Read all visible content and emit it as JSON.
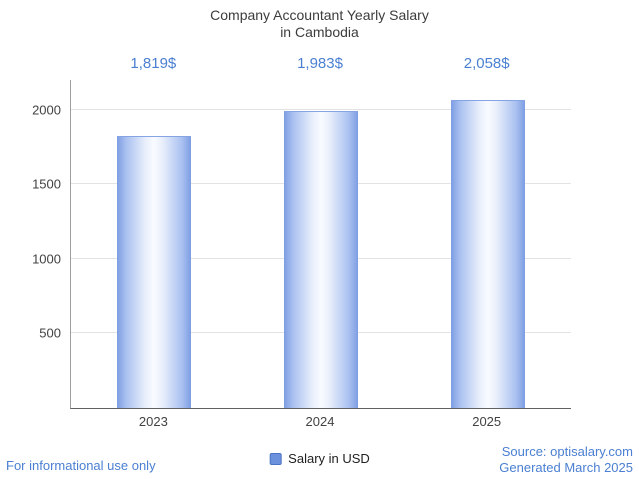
{
  "header": {
    "title_line1": "Company Accountant Yearly Salary",
    "title_line2": "in Cambodia"
  },
  "chart_data": {
    "type": "bar",
    "title": "Company Accountant Yearly Salary in Cambodia",
    "categories": [
      "2023",
      "2024",
      "2025"
    ],
    "values": [
      1819,
      1983,
      2058
    ],
    "value_labels": [
      "1,819$",
      "1,983$",
      "2,058$"
    ],
    "series_name": "Salary in USD",
    "xlabel": "",
    "ylabel": "",
    "ylim": [
      0,
      2200
    ],
    "yticks": [
      500,
      1000,
      1500,
      2000
    ],
    "grid": true,
    "legend_position": "bottom",
    "bar_edge_color": "#7d9de2",
    "bar_center_color": "#f9fbff"
  },
  "legend": {
    "label": "Salary in USD",
    "swatch_color": "#6d92dd"
  },
  "footer": {
    "disclaimer": "For informational use only",
    "source": "Source: optisalary.com",
    "generated": "Generated March 2025"
  },
  "colors": {
    "accent_text": "#4a7fd1",
    "title_text": "#3c3c3c",
    "axis_line": "#616161",
    "gridline": "#e3e3e3"
  }
}
